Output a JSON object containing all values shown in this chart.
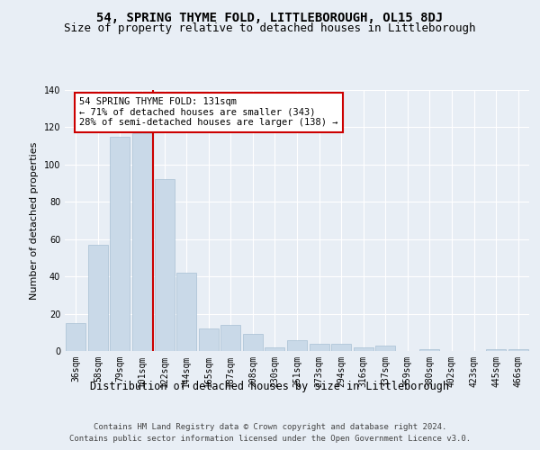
{
  "title1": "54, SPRING THYME FOLD, LITTLEBOROUGH, OL15 8DJ",
  "title2": "Size of property relative to detached houses in Littleborough",
  "xlabel": "Distribution of detached houses by size in Littleborough",
  "ylabel": "Number of detached properties",
  "categories": [
    "36sqm",
    "58sqm",
    "79sqm",
    "101sqm",
    "122sqm",
    "144sqm",
    "165sqm",
    "187sqm",
    "208sqm",
    "230sqm",
    "251sqm",
    "273sqm",
    "294sqm",
    "316sqm",
    "337sqm",
    "359sqm",
    "380sqm",
    "402sqm",
    "423sqm",
    "445sqm",
    "466sqm"
  ],
  "values": [
    15,
    57,
    115,
    117,
    92,
    42,
    12,
    14,
    9,
    2,
    6,
    4,
    4,
    2,
    3,
    0,
    1,
    0,
    0,
    1,
    1
  ],
  "bar_color": "#c9d9e8",
  "bar_edge_color": "#a8c0d4",
  "vline_color": "#cc0000",
  "annotation_text": "54 SPRING THYME FOLD: 131sqm\n← 71% of detached houses are smaller (343)\n28% of semi-detached houses are larger (138) →",
  "annotation_box_color": "white",
  "annotation_box_edge": "#cc0000",
  "ylim": [
    0,
    140
  ],
  "yticks": [
    0,
    20,
    40,
    60,
    80,
    100,
    120,
    140
  ],
  "footer1": "Contains HM Land Registry data © Crown copyright and database right 2024.",
  "footer2": "Contains public sector information licensed under the Open Government Licence v3.0.",
  "bg_color": "#e8eef5",
  "plot_bg_color": "#e8eef5",
  "title1_fontsize": 10,
  "title2_fontsize": 9,
  "xlabel_fontsize": 8.5,
  "ylabel_fontsize": 8,
  "tick_fontsize": 7,
  "annotation_fontsize": 7.5,
  "footer_fontsize": 6.5
}
